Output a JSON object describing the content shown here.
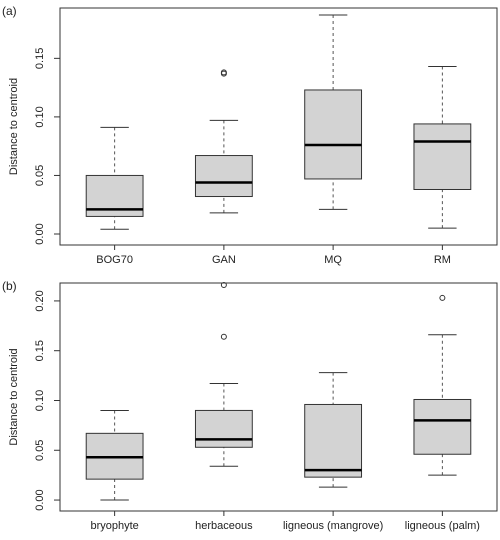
{
  "chart_data": [
    {
      "type": "box",
      "panel_label": "(a)",
      "y_label": "Distance to centroid",
      "color": "#d3d3d3",
      "categories": [
        "BOG70",
        "GAN",
        "MQ",
        "RM"
      ],
      "boxes": [
        {
          "whisker_low": 0.004,
          "q1": 0.015,
          "median": 0.021,
          "q3": 0.05,
          "whisker_high": 0.091,
          "outliers": []
        },
        {
          "whisker_low": 0.018,
          "q1": 0.032,
          "median": 0.044,
          "q3": 0.067,
          "whisker_high": 0.097,
          "outliers": [
            0.137,
            0.138
          ]
        },
        {
          "whisker_low": 0.021,
          "q1": 0.047,
          "median": 0.076,
          "q3": 0.123,
          "whisker_high": 0.187,
          "outliers": []
        },
        {
          "whisker_low": 0.005,
          "q1": 0.038,
          "median": 0.079,
          "q3": 0.094,
          "whisker_high": 0.143,
          "outliers": []
        }
      ],
      "ylim": [
        -0.0094,
        0.193
      ],
      "yticks": [
        {
          "value": 0,
          "label": "0.00"
        },
        {
          "value": 0.05,
          "label": "0.05"
        },
        {
          "value": 0.1,
          "label": "0.10"
        },
        {
          "value": 0.15,
          "label": "0.15"
        }
      ]
    },
    {
      "type": "box",
      "panel_label": "(b)",
      "y_label": "Distance to centroid",
      "color": "#d3d3d3",
      "categories": [
        "bryophyte",
        "herbaceous",
        "ligneous (mangrove)",
        "ligneous (palm)"
      ],
      "boxes": [
        {
          "whisker_low": 0.0,
          "q1": 0.021,
          "median": 0.043,
          "q3": 0.067,
          "whisker_high": 0.09,
          "outliers": []
        },
        {
          "whisker_low": 0.034,
          "q1": 0.053,
          "median": 0.061,
          "q3": 0.09,
          "whisker_high": 0.117,
          "outliers": [
            0.164,
            0.216
          ]
        },
        {
          "whisker_low": 0.013,
          "q1": 0.023,
          "median": 0.03,
          "q3": 0.096,
          "whisker_high": 0.128,
          "outliers": []
        },
        {
          "whisker_low": 0.025,
          "q1": 0.046,
          "median": 0.08,
          "q3": 0.101,
          "whisker_high": 0.166,
          "outliers": [
            0.203
          ]
        }
      ],
      "ylim": [
        -0.011,
        0.218
      ],
      "yticks": [
        {
          "value": 0,
          "label": "0.00"
        },
        {
          "value": 0.05,
          "label": "0.05"
        },
        {
          "value": 0.1,
          "label": "0.10"
        },
        {
          "value": 0.15,
          "label": "0.15"
        },
        {
          "value": 0.2,
          "label": "0.20"
        }
      ]
    }
  ]
}
